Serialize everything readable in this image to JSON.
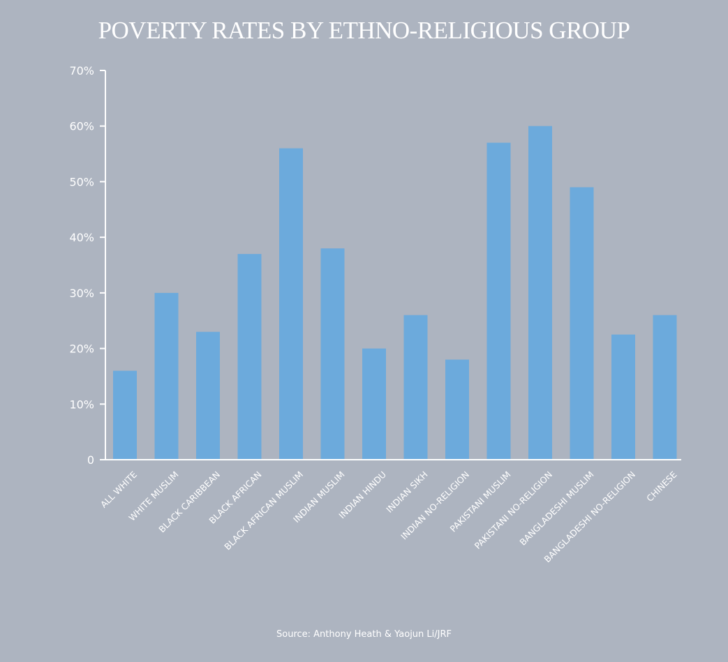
{
  "chart_data": {
    "type": "bar",
    "title": "POVERTY RATES BY ETHNO-RELIGIOUS GROUP",
    "xlabel": "",
    "ylabel": "",
    "ylim": [
      0,
      70
    ],
    "yticks": [
      0,
      10,
      20,
      30,
      40,
      50,
      60,
      70
    ],
    "ytick_labels": [
      "0",
      "10%",
      "20%",
      "30%",
      "40%",
      "50%",
      "60%",
      "70%"
    ],
    "grid": false,
    "legend": null,
    "categories": [
      "ALL WHITE",
      "WHITE MUSLIM",
      "BLACK CARIBBEAN",
      "BLACK AFRICAN",
      "BLACK AFRICAN MUSLIM",
      "INDIAN MUSLIM",
      "INDIAN HINDU",
      "INDIAN SIKH",
      "INDIAN NO-RELIGION",
      "PAKISTANI MUSLIM",
      "PAKISTANI NO-RELIGION",
      "BANGLADESHI MUSLIM",
      "BANGLADESHI NO-RELIGION",
      "CHINESE"
    ],
    "values": [
      16,
      30,
      23,
      37,
      56,
      38,
      20,
      26,
      18,
      57,
      60,
      49,
      22.5,
      26
    ],
    "unit": "%",
    "bar_color": "#6caadc",
    "source": "Source: Anthony Heath & Yaojun Li/JRF"
  },
  "colors": {
    "background": "#adb4c0",
    "bar": "#6caadc",
    "axis": "#ffffff",
    "text": "#ffffff"
  }
}
